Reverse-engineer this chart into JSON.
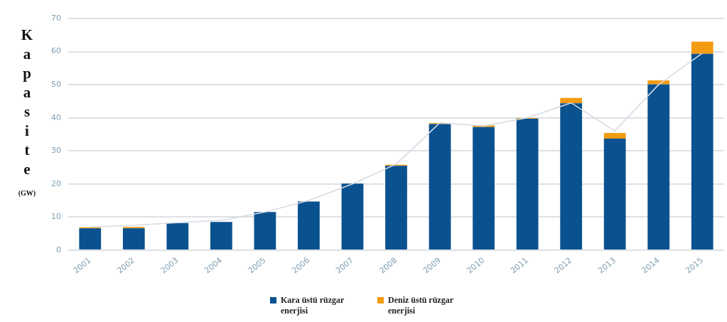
{
  "chart_data": {
    "type": "bar",
    "ylabel": "Kapasite (GW)",
    "categories": [
      "2001",
      "2002",
      "2003",
      "2004",
      "2005",
      "2006",
      "2007",
      "2008",
      "2009",
      "2010",
      "2011",
      "2012",
      "2013",
      "2014",
      "2015"
    ],
    "series": [
      {
        "name": "Kara üstü rüzgar enerjisi",
        "color": "#0a5190",
        "values": [
          6.6,
          6.6,
          8.2,
          8.5,
          11.5,
          14.7,
          20.1,
          25.5,
          38.1,
          37.2,
          39.7,
          44.4,
          33.7,
          50.1,
          59.3
        ]
      },
      {
        "name": "Deniz üstü rüzgar enerjisi",
        "color": "#f39c12",
        "values": [
          0.3,
          0.4,
          0,
          0,
          0,
          0,
          0,
          0.3,
          0.3,
          0.5,
          0.2,
          1.6,
          1.7,
          1.2,
          3.7
        ]
      },
      {
        "type": "line",
        "color": "#d5dbe2",
        "values": [
          7,
          7.5,
          8.3,
          9,
          11.5,
          15,
          20,
          26,
          38.5,
          37.5,
          40,
          44.5,
          36,
          50,
          59.5
        ]
      }
    ],
    "stacked": true,
    "marker": "none",
    "ylim": [
      0,
      70
    ],
    "yticks": [
      0,
      10,
      20,
      30,
      40,
      50,
      60,
      70
    ],
    "grid": "y",
    "legend": "bottom"
  }
}
